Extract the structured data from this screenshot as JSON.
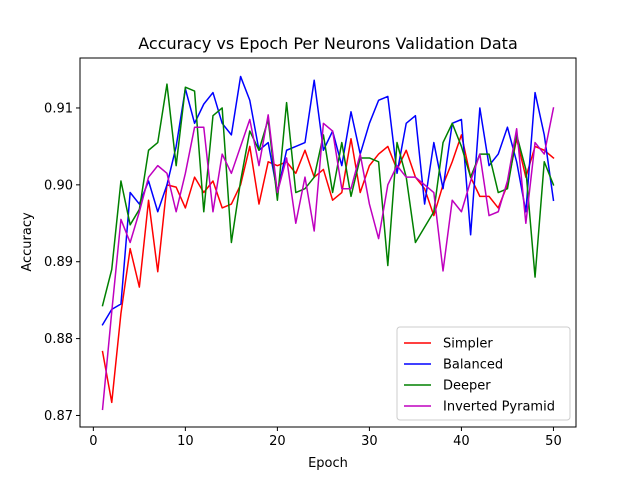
{
  "chart_data": {
    "type": "line",
    "title": "Accuracy vs Epoch Per Neurons Validation Data",
    "xlabel": "Epoch",
    "ylabel": "Accuracy",
    "xlim": [
      -1.45,
      52.45
    ],
    "ylim": [
      0.8685,
      0.9165
    ],
    "xticks": [
      0,
      10,
      20,
      30,
      40,
      50
    ],
    "xtick_labels": [
      "0",
      "10",
      "20",
      "30",
      "40",
      "50"
    ],
    "yticks": [
      0.87,
      0.88,
      0.89,
      0.9,
      0.91
    ],
    "ytick_labels": [
      "0.87",
      "0.88",
      "0.89",
      "0.90",
      "0.91"
    ],
    "grid": false,
    "legend_position": "lower-right",
    "x": [
      1,
      2,
      3,
      4,
      5,
      6,
      7,
      8,
      9,
      10,
      11,
      12,
      13,
      14,
      15,
      16,
      17,
      18,
      19,
      20,
      21,
      22,
      23,
      24,
      25,
      26,
      27,
      28,
      29,
      30,
      31,
      32,
      33,
      34,
      35,
      36,
      37,
      38,
      39,
      40,
      41,
      42,
      43,
      44,
      45,
      46,
      47,
      48,
      49,
      50
    ],
    "series": [
      {
        "name": "Simpler",
        "color": "#ff0000",
        "values": [
          0.8783,
          0.8717,
          0.8833,
          0.8917,
          0.8867,
          0.898,
          0.8887,
          0.9,
          0.8997,
          0.897,
          0.901,
          0.899,
          0.9005,
          0.897,
          0.8975,
          0.9,
          0.905,
          0.8975,
          0.903,
          0.9025,
          0.903,
          0.9015,
          0.9045,
          0.901,
          0.902,
          0.898,
          0.899,
          0.906,
          0.899,
          0.9025,
          0.904,
          0.905,
          0.902,
          0.9045,
          0.901,
          0.8995,
          0.896,
          0.9,
          0.903,
          0.9065,
          0.901,
          0.8985,
          0.8985,
          0.897,
          0.9,
          0.906,
          0.901,
          0.905,
          0.9045,
          0.9035
        ]
      },
      {
        "name": "Balanced",
        "color": "#0000ff",
        "values": [
          0.8818,
          0.8838,
          0.8845,
          0.899,
          0.8975,
          0.9005,
          0.8965,
          0.9,
          0.905,
          0.9125,
          0.908,
          0.9105,
          0.912,
          0.908,
          0.9065,
          0.9141,
          0.911,
          0.9045,
          0.9055,
          0.899,
          0.9045,
          0.905,
          0.9055,
          0.9136,
          0.9045,
          0.907,
          0.9025,
          0.9095,
          0.904,
          0.908,
          0.911,
          0.9115,
          0.9015,
          0.908,
          0.909,
          0.8975,
          0.9055,
          0.8995,
          0.908,
          0.9085,
          0.8935,
          0.91,
          0.9025,
          0.904,
          0.9075,
          0.903,
          0.8965,
          0.912,
          0.9065,
          0.898
        ]
      },
      {
        "name": "Deeper",
        "color": "#008000",
        "values": [
          0.8843,
          0.889,
          0.9005,
          0.8948,
          0.8968,
          0.9045,
          0.9055,
          0.9131,
          0.9025,
          0.9127,
          0.9122,
          0.8965,
          0.909,
          0.91,
          0.8925,
          0.9005,
          0.907,
          0.9045,
          0.9085,
          0.898,
          0.9107,
          0.899,
          0.8995,
          0.901,
          0.9065,
          0.899,
          0.9055,
          0.8985,
          0.9035,
          0.9035,
          0.903,
          0.8895,
          0.9055,
          0.901,
          0.8925,
          0.8945,
          0.8965,
          0.9055,
          0.908,
          0.905,
          0.901,
          0.904,
          0.904,
          0.899,
          0.8995,
          0.9065,
          0.902,
          0.888,
          0.903,
          0.9
        ]
      },
      {
        "name": "Inverted Pyramid",
        "color": "#bf00bf",
        "values": [
          0.8708,
          0.8835,
          0.8955,
          0.8925,
          0.8965,
          0.901,
          0.9025,
          0.9015,
          0.8965,
          0.9015,
          0.9075,
          0.9075,
          0.8965,
          0.904,
          0.9015,
          0.905,
          0.9085,
          0.9025,
          0.9091,
          0.899,
          0.9035,
          0.895,
          0.901,
          0.894,
          0.908,
          0.907,
          0.8995,
          0.8995,
          0.904,
          0.8975,
          0.893,
          0.9,
          0.9025,
          0.901,
          0.901,
          0.9,
          0.899,
          0.8888,
          0.898,
          0.8965,
          0.9005,
          0.904,
          0.896,
          0.8965,
          0.9005,
          0.9073,
          0.895,
          0.9055,
          0.904,
          0.91
        ]
      }
    ]
  }
}
